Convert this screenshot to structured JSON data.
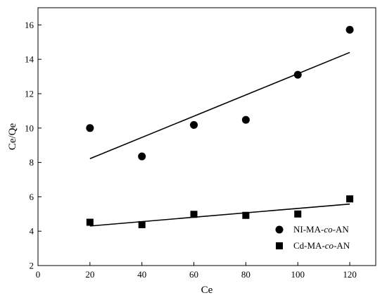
{
  "chart_data": {
    "type": "scatter",
    "title": "",
    "xlabel": "Ce",
    "ylabel": "Ce/Qe",
    "xlim": [
      0,
      130
    ],
    "ylim": [
      2,
      17
    ],
    "xticks": [
      0,
      20,
      40,
      60,
      80,
      100,
      120
    ],
    "yticks": [
      2,
      4,
      6,
      8,
      10,
      12,
      14,
      16
    ],
    "grid": false,
    "legend_position": "bottom-right",
    "series": [
      {
        "name": "NI-MA-co-AN",
        "legend_parts": [
          "NI-MA-",
          "co",
          "-AN"
        ],
        "marker": "circle",
        "color": "#000000",
        "x": [
          20,
          40,
          60,
          80,
          100,
          120
        ],
        "y": [
          10.0,
          8.35,
          10.18,
          10.48,
          13.1,
          15.72
        ],
        "fit_line": {
          "x": [
            20,
            120
          ],
          "y": [
            8.22,
            14.4
          ]
        }
      },
      {
        "name": "Cd-MA-co-AN",
        "legend_parts": [
          "Cd-MA-",
          "co",
          "-AN"
        ],
        "marker": "square",
        "color": "#000000",
        "x": [
          20,
          40,
          60,
          80,
          100,
          120
        ],
        "y": [
          4.52,
          4.38,
          4.98,
          4.92,
          5.0,
          5.88
        ],
        "fit_line": {
          "x": [
            20,
            120
          ],
          "y": [
            4.3,
            5.58
          ]
        }
      }
    ]
  }
}
